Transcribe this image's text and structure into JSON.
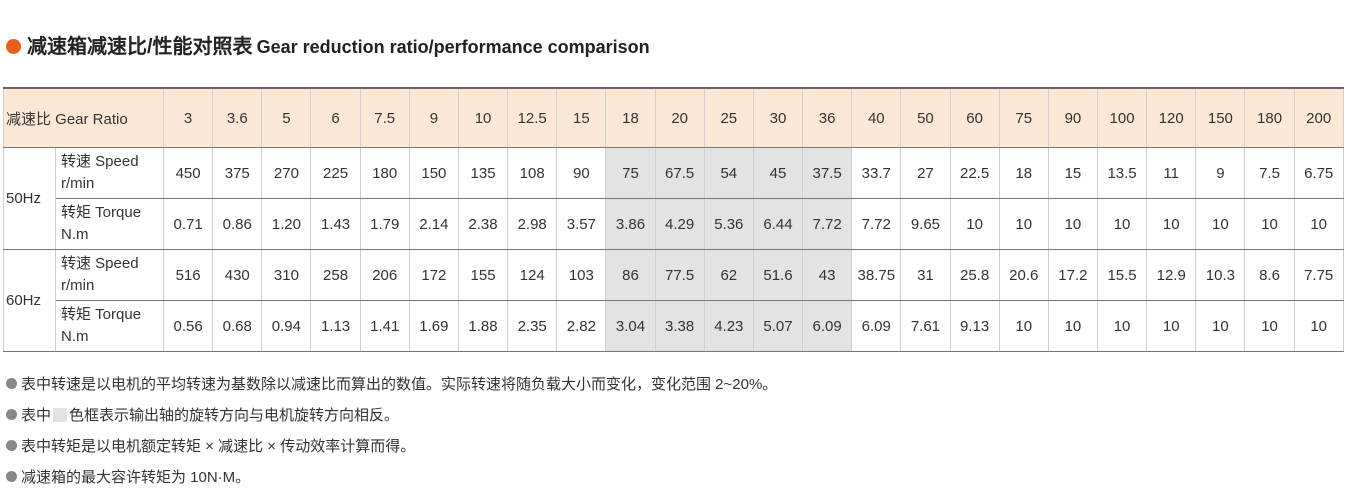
{
  "header": {
    "title_cn": "减速箱减速比/性能对照表",
    "title_en": "Gear reduction ratio/performance comparison"
  },
  "table": {
    "header_label": "减速比 Gear Ratio",
    "ratios": [
      "3",
      "3.6",
      "5",
      "6",
      "7.5",
      "9",
      "10",
      "12.5",
      "15",
      "18",
      "20",
      "25",
      "30",
      "36",
      "40",
      "50",
      "60",
      "75",
      "90",
      "100",
      "120",
      "150",
      "180",
      "200"
    ],
    "groups": [
      {
        "label": "50Hz",
        "rows": [
          {
            "label": "转速 Speed",
            "unit": "r/min",
            "values": [
              "450",
              "375",
              "270",
              "225",
              "180",
              "150",
              "135",
              "108",
              "90",
              "75",
              "67.5",
              "54",
              "45",
              "37.5",
              "33.7",
              "27",
              "22.5",
              "18",
              "15",
              "13.5",
              "11",
              "9",
              "7.5",
              "6.75"
            ]
          },
          {
            "label": "转矩 Torque",
            "unit": "N.m",
            "values": [
              "0.71",
              "0.86",
              "1.20",
              "1.43",
              "1.79",
              "2.14",
              "2.38",
              "2.98",
              "3.57",
              "3.86",
              "4.29",
              "5.36",
              "6.44",
              "7.72",
              "7.72",
              "9.65",
              "10",
              "10",
              "10",
              "10",
              "10",
              "10",
              "10",
              "10"
            ]
          }
        ]
      },
      {
        "label": "60Hz",
        "rows": [
          {
            "label": "转速 Speed",
            "unit": "r/min",
            "values": [
              "516",
              "430",
              "310",
              "258",
              "206",
              "172",
              "155",
              "124",
              "103",
              "86",
              "77.5",
              "62",
              "51.6",
              "43",
              "38.75",
              "31",
              "25.8",
              "20.6",
              "17.2",
              "15.5",
              "12.9",
              "10.3",
              "8.6",
              "7.75"
            ]
          },
          {
            "label": "转矩 Torque",
            "unit": "N.m",
            "values": [
              "0.56",
              "0.68",
              "0.94",
              "1.13",
              "1.41",
              "1.69",
              "1.88",
              "2.35",
              "2.82",
              "3.04",
              "3.38",
              "4.23",
              "5.07",
              "6.09",
              "6.09",
              "7.61",
              "9.13",
              "10",
              "10",
              "10",
              "10",
              "10",
              "10",
              "10"
            ]
          }
        ]
      }
    ]
  },
  "notes": [
    "表中转速是以电机的平均转速为基数除以减速比而算出的数值。实际转速将随负载大小而变化，变化范围 2~20%。",
    {
      "before": "表中",
      "after": "色框表示输出轴的旋转方向与电机旋转方向相反。"
    },
    "表中转矩是以电机额定转矩 × 减速比 × 传动效率计算而得。",
    "减速箱的最大容许转矩为 10N·M。"
  ]
}
